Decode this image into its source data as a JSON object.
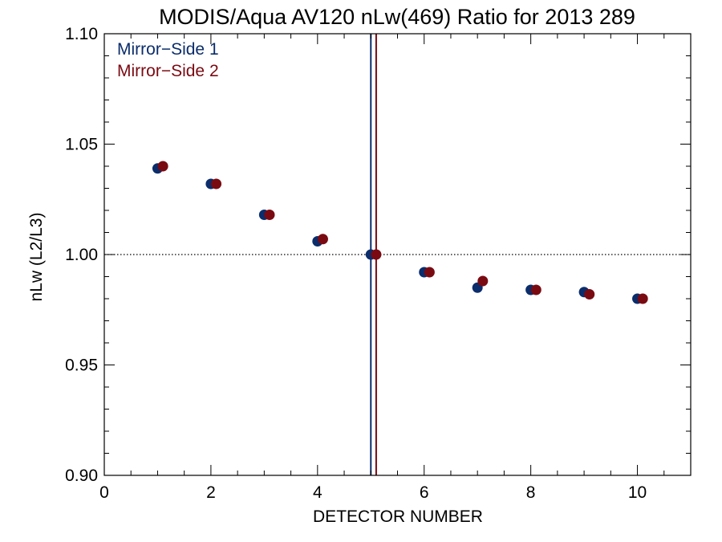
{
  "chart_data": {
    "type": "scatter",
    "title": "MODIS/Aqua AV120 nLw(469) Ratio for 2013 289",
    "xlabel": "DETECTOR NUMBER",
    "ylabel": "nLw (L2/L3)",
    "xlim": [
      0,
      11
    ],
    "ylim": [
      0.9,
      1.1
    ],
    "x_ticks": [
      0,
      2,
      4,
      6,
      8,
      10
    ],
    "x_tick_labels": [
      "0",
      "2",
      "4",
      "6",
      "8",
      "10"
    ],
    "y_ticks": [
      0.9,
      0.95,
      1.0,
      1.05,
      1.1
    ],
    "y_tick_labels": [
      "0.90",
      "0.95",
      "1.00",
      "1.05",
      "1.10"
    ],
    "reference_line_y": 1.0,
    "legend_position": "top-left",
    "series": [
      {
        "name": "Mirror−Side 1",
        "color": "#0b2d6b",
        "x": [
          1,
          2,
          3,
          4,
          5,
          6,
          7,
          8,
          9,
          10
        ],
        "y": [
          1.039,
          1.032,
          1.018,
          1.006,
          1.0,
          0.992,
          0.985,
          0.984,
          0.983,
          0.98
        ],
        "vline_x": 5.0
      },
      {
        "name": "Mirror−Side 2",
        "color": "#7a0a12",
        "x": [
          1.1,
          2.1,
          3.1,
          4.1,
          5.1,
          6.1,
          7.1,
          8.1,
          9.1,
          10.1
        ],
        "y": [
          1.04,
          1.032,
          1.018,
          1.007,
          1.0,
          0.992,
          0.988,
          0.984,
          0.982,
          0.98
        ],
        "vline_x": 5.1
      }
    ]
  }
}
